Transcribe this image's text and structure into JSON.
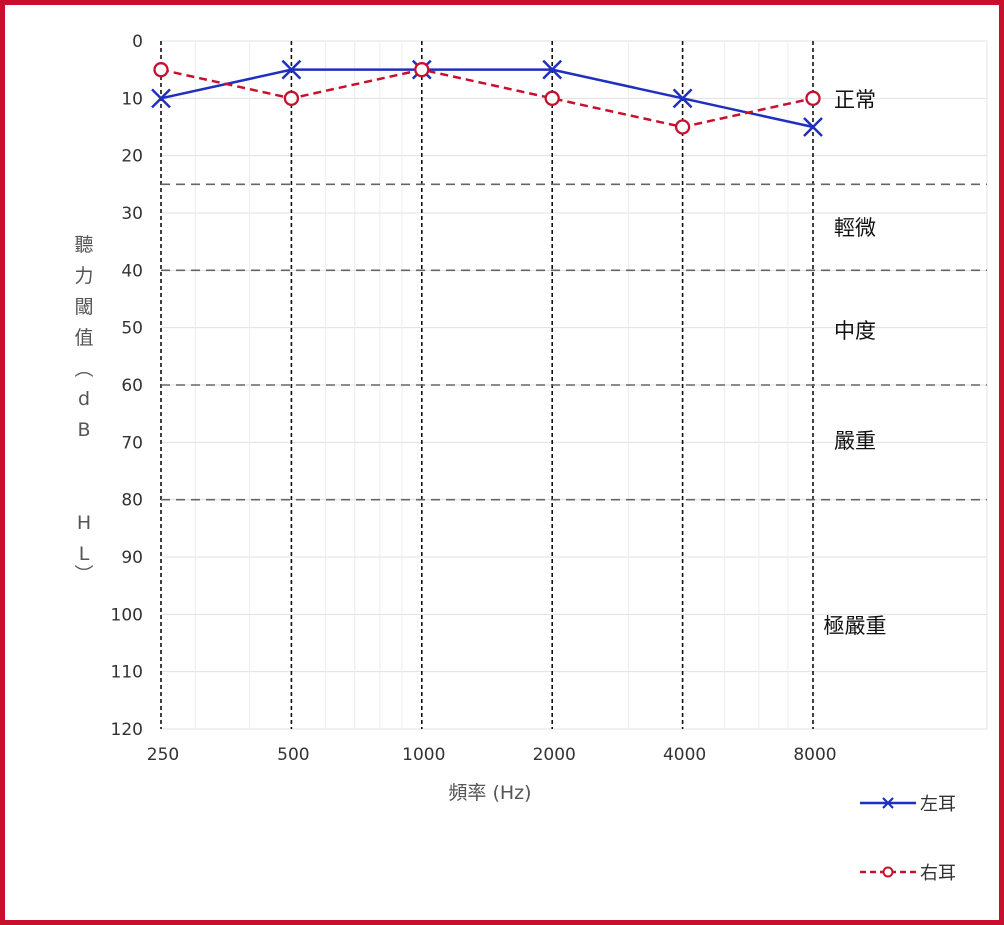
{
  "chart_data": {
    "type": "line",
    "title": "",
    "xlabel": "頻率 (Hz)",
    "ylabel": "聽力閾值（dB HL）",
    "x_scale": "log",
    "categories": [
      "250",
      "500",
      "1000",
      "2000",
      "4000",
      "8000"
    ],
    "x": [
      250,
      500,
      1000,
      2000,
      4000,
      8000
    ],
    "ylim": [
      0,
      120
    ],
    "y_inverted": true,
    "y_ticks": [
      0,
      10,
      20,
      30,
      40,
      50,
      60,
      70,
      80,
      90,
      100,
      110,
      120
    ],
    "grid": true,
    "series": [
      {
        "name": "左耳",
        "values": [
          10,
          5,
          5,
          5,
          10,
          15
        ],
        "color": "#1f2fbf",
        "marker": "x",
        "line": "solid"
      },
      {
        "name": "右耳",
        "values": [
          5,
          10,
          5,
          10,
          15,
          10
        ],
        "color": "#c8102e",
        "marker": "circle",
        "line": "dashed"
      }
    ],
    "thresholds": [
      25,
      40,
      60,
      80
    ],
    "bands": [
      "正常",
      "輕微",
      "中度",
      "嚴重",
      "極嚴重"
    ],
    "legend_position": "bottom-right"
  }
}
